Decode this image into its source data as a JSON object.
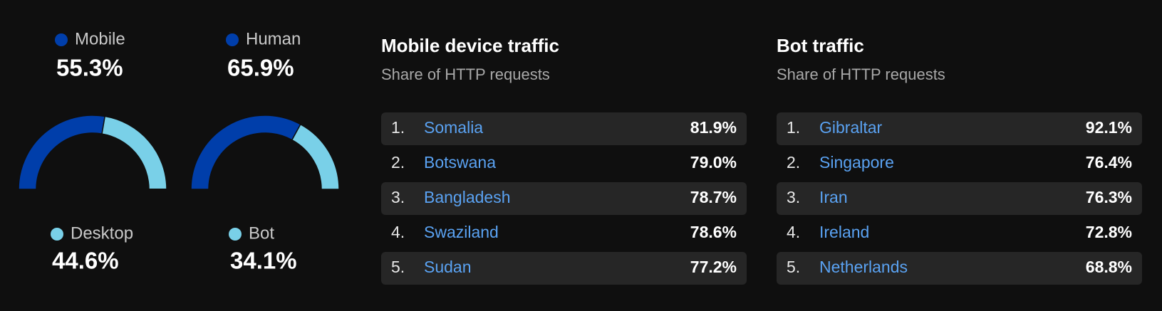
{
  "chart_data": [
    {
      "type": "gauge",
      "categories": [
        "Mobile",
        "Desktop"
      ],
      "values": [
        55.3,
        44.6
      ],
      "value_labels": [
        "55.3%",
        "44.6%"
      ],
      "colors": [
        "#003eaa",
        "#79d0e8"
      ]
    },
    {
      "type": "gauge",
      "categories": [
        "Human",
        "Bot"
      ],
      "values": [
        65.9,
        34.1
      ],
      "value_labels": [
        "65.9%",
        "34.1%"
      ],
      "colors": [
        "#003eaa",
        "#79d0e8"
      ]
    }
  ],
  "tables": [
    {
      "title": "Mobile device traffic",
      "subtitle": "Share of HTTP requests",
      "rows": [
        {
          "rank": "1.",
          "name": "Somalia",
          "value": "81.9%"
        },
        {
          "rank": "2.",
          "name": "Botswana",
          "value": "79.0%"
        },
        {
          "rank": "3.",
          "name": "Bangladesh",
          "value": "78.7%"
        },
        {
          "rank": "4.",
          "name": "Swaziland",
          "value": "78.6%"
        },
        {
          "rank": "5.",
          "name": "Sudan",
          "value": "77.2%"
        }
      ]
    },
    {
      "title": "Bot traffic",
      "subtitle": "Share of HTTP requests",
      "rows": [
        {
          "rank": "1.",
          "name": "Gibraltar",
          "value": "92.1%"
        },
        {
          "rank": "2.",
          "name": "Singapore",
          "value": "76.4%"
        },
        {
          "rank": "3.",
          "name": "Iran",
          "value": "76.3%"
        },
        {
          "rank": "4.",
          "name": "Ireland",
          "value": "72.8%"
        },
        {
          "rank": "5.",
          "name": "Netherlands",
          "value": "68.8%"
        }
      ]
    }
  ]
}
